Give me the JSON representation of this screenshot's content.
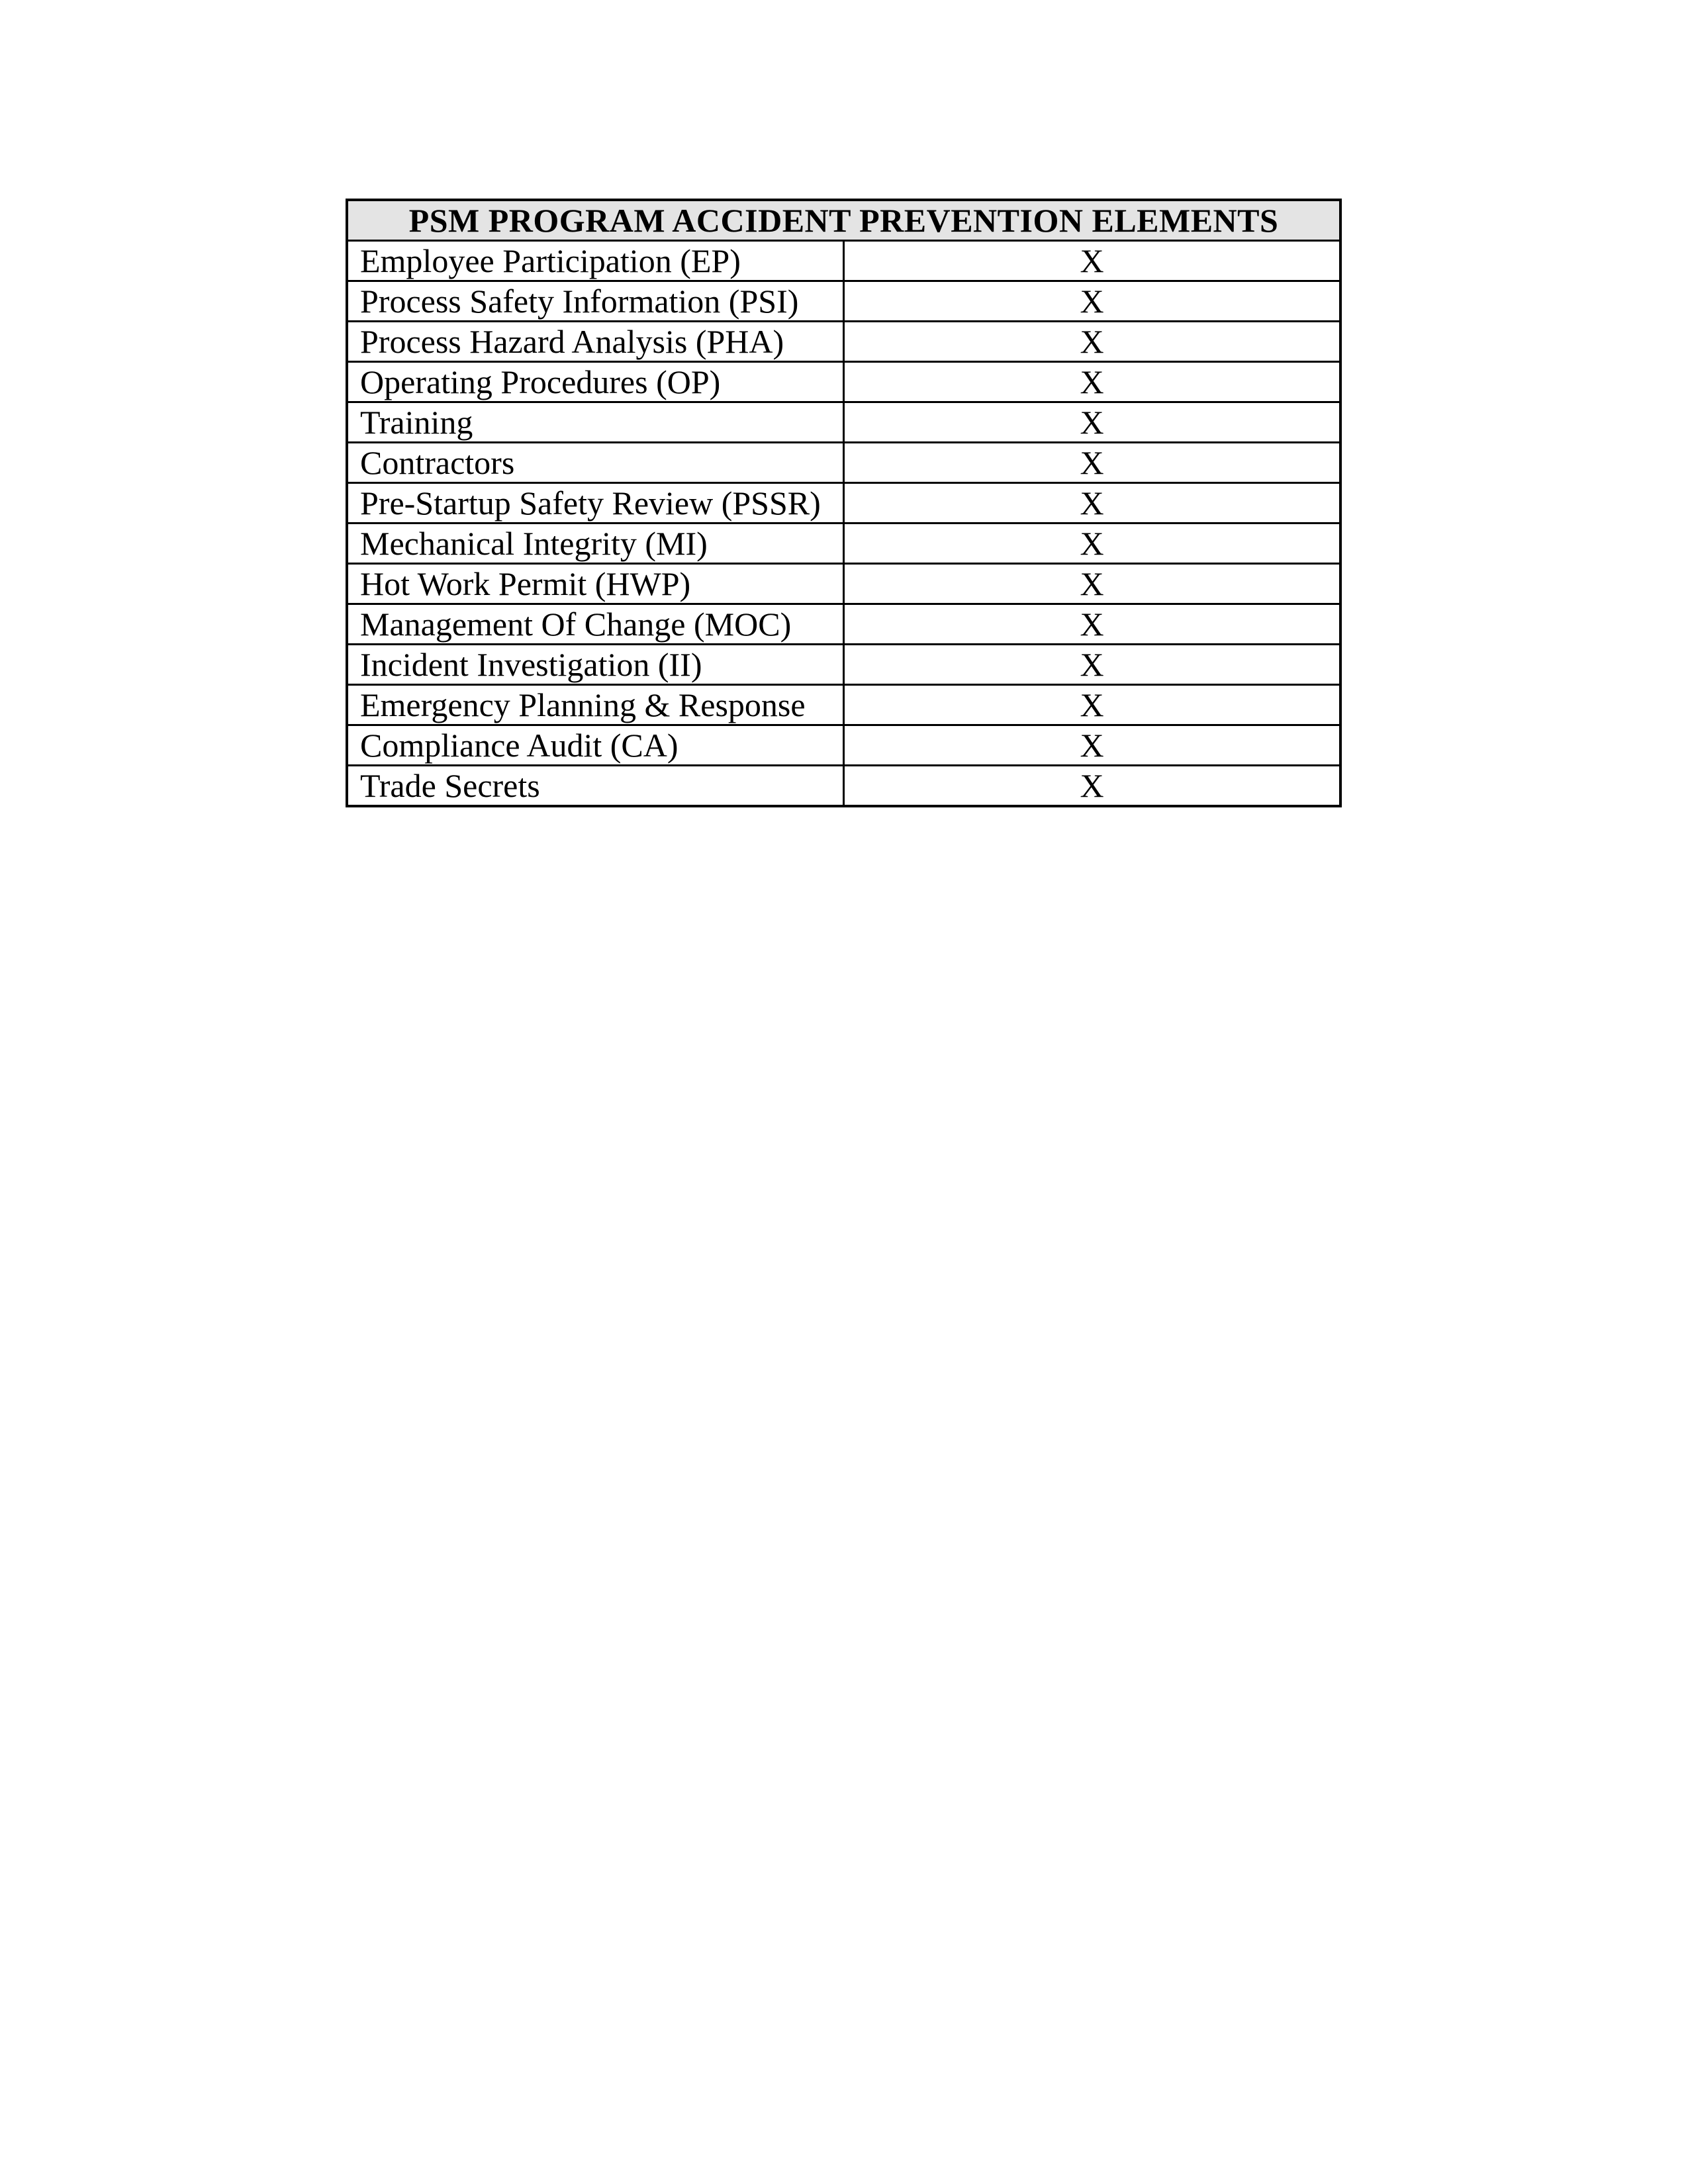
{
  "page": {
    "background_color": "#ffffff"
  },
  "table": {
    "title": "PSM PROGRAM ACCIDENT PREVENTION ELEMENTS",
    "header_background_color": "#e4e4e4",
    "border_color": "#000000",
    "mark_column_symbol": "X",
    "rows": [
      {
        "label": "Employee Participation (EP)",
        "mark": "X"
      },
      {
        "label": "Process Safety Information (PSI)",
        "mark": "X"
      },
      {
        "label": "Process Hazard Analysis (PHA)",
        "mark": "X"
      },
      {
        "label": "Operating Procedures (OP)",
        "mark": "X"
      },
      {
        "label": "Training",
        "mark": "X"
      },
      {
        "label": "Contractors",
        "mark": "X"
      },
      {
        "label": "Pre-Startup Safety Review (PSSR)",
        "mark": "X"
      },
      {
        "label": "Mechanical Integrity (MI)",
        "mark": "X"
      },
      {
        "label": "Hot Work Permit (HWP)",
        "mark": "X"
      },
      {
        "label": "Management Of Change (MOC)",
        "mark": "X"
      },
      {
        "label": "Incident Investigation (II)",
        "mark": "X"
      },
      {
        "label": "Emergency Planning & Response",
        "mark": "X"
      },
      {
        "label": "Compliance Audit (CA)",
        "mark": "X"
      },
      {
        "label": "Trade Secrets",
        "mark": "X"
      }
    ]
  }
}
